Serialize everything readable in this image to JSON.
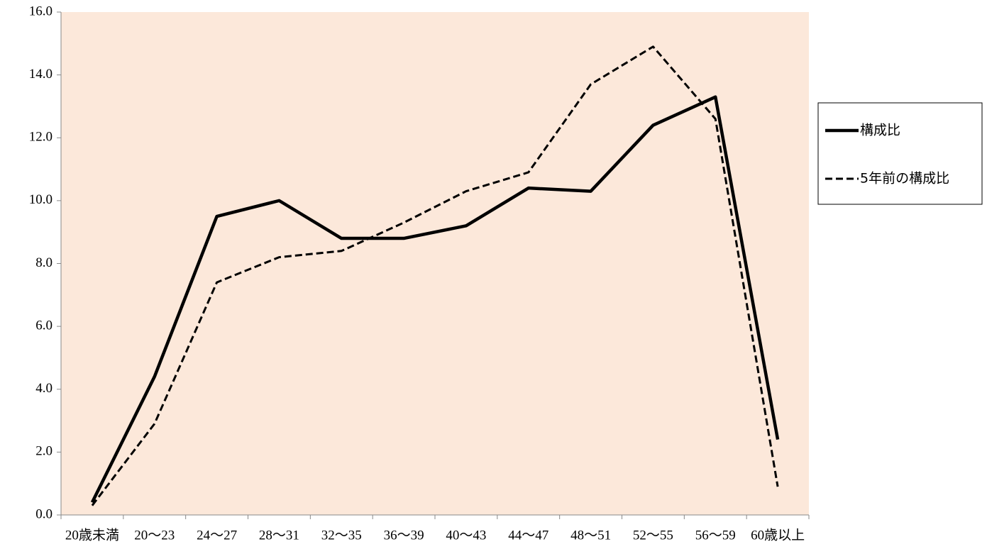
{
  "chart_data": {
    "type": "line",
    "categories": [
      "20歳未満",
      "20〜23",
      "24〜27",
      "28〜31",
      "32〜35",
      "36〜39",
      "40〜43",
      "44〜47",
      "48〜51",
      "52〜55",
      "56〜59",
      "60歳以上"
    ],
    "series": [
      {
        "name": "構成比",
        "color": "#000000",
        "line_style": "solid",
        "values": [
          0.4,
          4.4,
          9.5,
          10.0,
          8.8,
          8.8,
          9.2,
          10.4,
          10.3,
          12.4,
          13.3,
          2.4
        ]
      },
      {
        "name": "5年前の構成比",
        "color": "#000000",
        "line_style": "dashed",
        "values": [
          0.3,
          2.9,
          7.4,
          8.2,
          8.4,
          9.3,
          10.3,
          10.9,
          13.7,
          14.9,
          12.6,
          0.9
        ]
      }
    ],
    "ylim": [
      0,
      16
    ],
    "yticks": [
      {
        "value": 0,
        "label": "0.0"
      },
      {
        "value": 2,
        "label": "2.0"
      },
      {
        "value": 4,
        "label": "4.0"
      },
      {
        "value": 6,
        "label": "6.0"
      },
      {
        "value": 8,
        "label": "8.0"
      },
      {
        "value": 10,
        "label": "10.0"
      },
      {
        "value": 12,
        "label": "12.0"
      },
      {
        "value": 14,
        "label": "14.0"
      },
      {
        "value": 16,
        "label": "16.0"
      }
    ],
    "plot_background": "#fce8da",
    "legend": "right"
  }
}
